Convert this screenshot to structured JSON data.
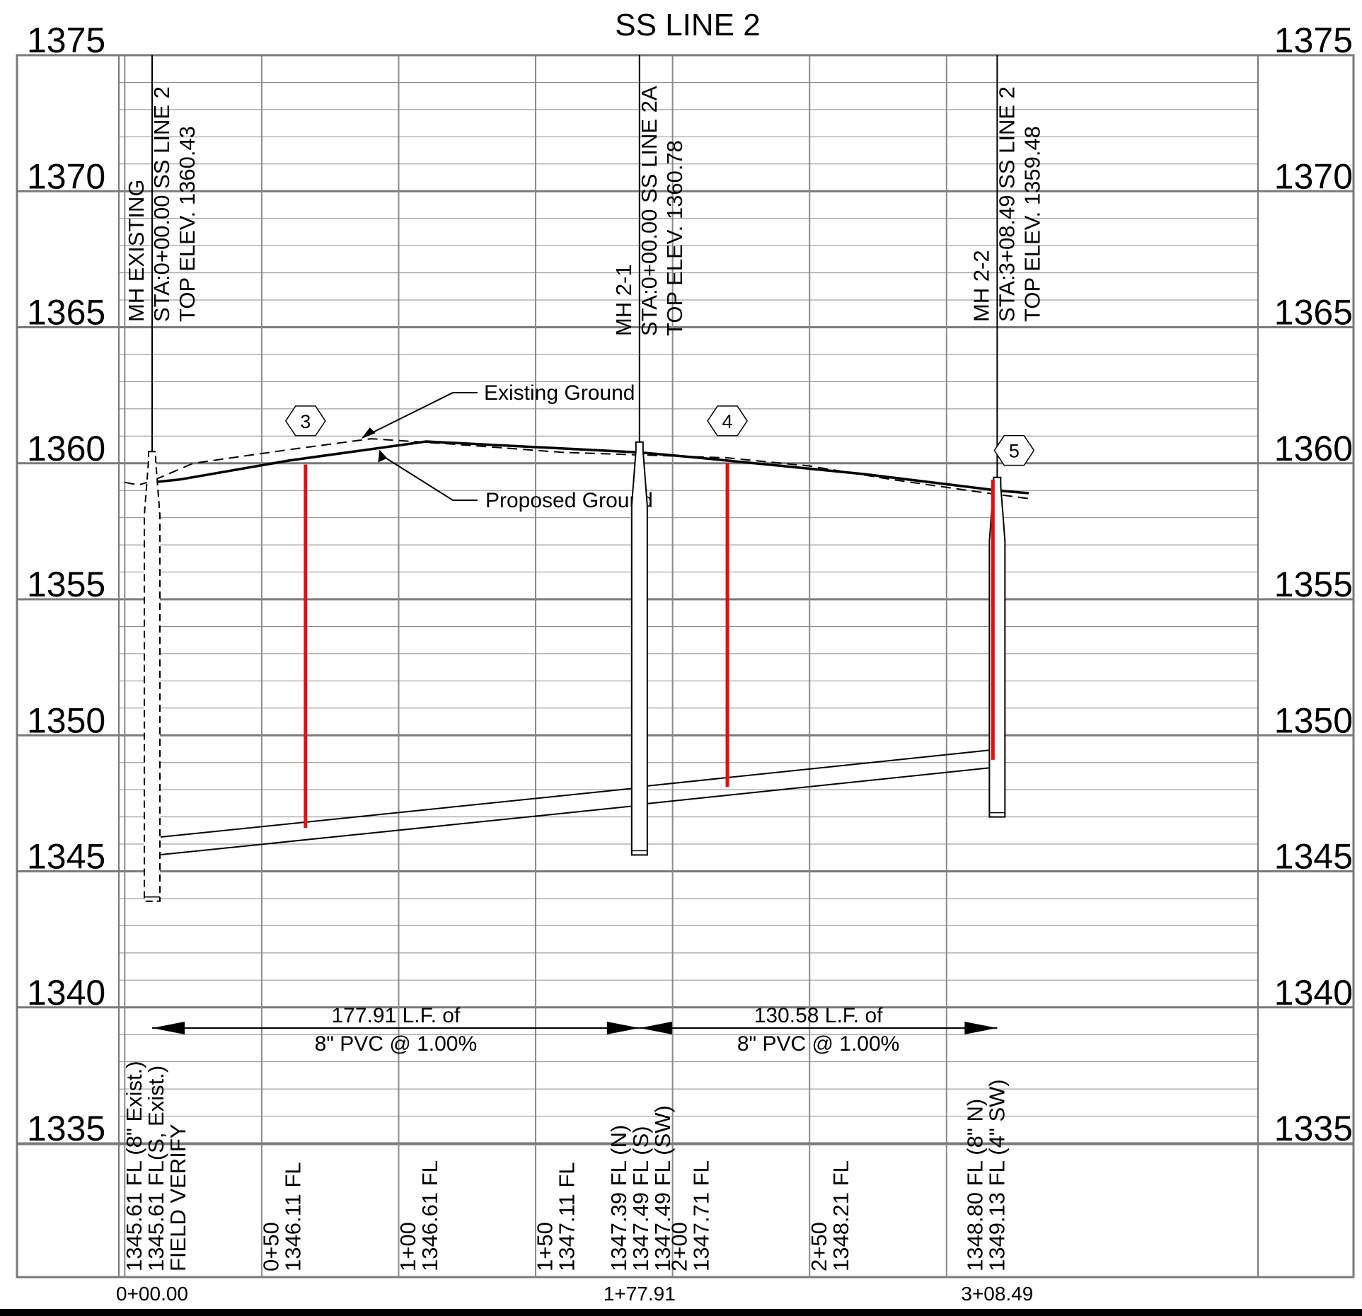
{
  "title": "SS LINE 2",
  "elevation_labels": [
    "1375",
    "1370",
    "1365",
    "1360",
    "1355",
    "1350",
    "1345",
    "1340",
    "1335"
  ],
  "manholes": [
    {
      "name": "MH EXISTING",
      "station_line": "STA:0+00.00 SS LINE 2",
      "top_elev": "TOP ELEV. 1360.43",
      "station": 0.0,
      "top": 1360.43,
      "bottom": 1343.9
    },
    {
      "name": "MH  2-1",
      "station_line": "STA:0+00.00 SS LINE 2A",
      "top_elev": "TOP ELEV. 1360.78",
      "station": 177.91,
      "top": 1360.78,
      "bottom": 1345.6
    },
    {
      "name": "MH 2-2",
      "station_line": "STA:3+08.49 SS LINE 2",
      "top_elev": "TOP ELEV. 1359.48",
      "station": 308.49,
      "top": 1359.48,
      "bottom": 1347.0
    }
  ],
  "ground": {
    "existing_label": "Existing Ground",
    "proposed_label": "Proposed Ground",
    "existing_profile": [
      [
        -10,
        1359.3
      ],
      [
        -5,
        1359.2
      ],
      [
        0,
        1359.35
      ],
      [
        15,
        1360.0
      ],
      [
        50,
        1360.5
      ],
      [
        80,
        1360.9
      ],
      [
        110,
        1360.7
      ],
      [
        150,
        1360.4
      ],
      [
        180,
        1360.3
      ],
      [
        210,
        1360.2
      ],
      [
        240,
        1359.9
      ],
      [
        270,
        1359.4
      ],
      [
        305,
        1358.9
      ],
      [
        320,
        1358.7
      ]
    ],
    "proposed_profile": [
      [
        0,
        1359.3
      ],
      [
        10,
        1359.4
      ],
      [
        50,
        1360.1
      ],
      [
        100,
        1360.8
      ],
      [
        177.91,
        1360.4
      ],
      [
        200,
        1360.2
      ],
      [
        260,
        1359.6
      ],
      [
        308.49,
        1359.0
      ],
      [
        320,
        1358.9
      ]
    ]
  },
  "pipes": [
    {
      "length_label": "177.91 L.F. of",
      "spec_label": "8\" PVC @ 1.00%",
      "from": 0.0,
      "to": 177.91,
      "invert_start": 1345.61,
      "invert_end": 1347.39
    },
    {
      "length_label": "130.58 L.F. of",
      "spec_label": "8\" PVC @ 1.00%",
      "from": 177.91,
      "to": 308.49,
      "invert_start": 1347.49,
      "invert_end": 1348.8
    }
  ],
  "callouts": [
    {
      "number": "3",
      "station": 56,
      "ground": 1359.95,
      "bottom": 1346.6
    },
    {
      "number": "4",
      "station": 210,
      "ground": 1360.0,
      "bottom": 1348.1
    },
    {
      "number": "5",
      "station": 309,
      "ground": 1359.4,
      "bottom": 1349.1
    }
  ],
  "vertical_labels": [
    {
      "text": "1345.61 FL (8\" Exist.)",
      "station": -7
    },
    {
      "text": "1345.61 FL(S, Exist.)",
      "station": 1
    },
    {
      "text": "FIELD VERIFY",
      "station": 9
    },
    {
      "text": "0+50",
      "station": 43
    },
    {
      "text": "1346.11 FL",
      "station": 51
    },
    {
      "text": "1+00",
      "station": 93
    },
    {
      "text": "1346.61 FL",
      "station": 101
    },
    {
      "text": "1+50",
      "station": 143
    },
    {
      "text": "1347.11 FL",
      "station": 151
    },
    {
      "text": "1347.39 FL (N)",
      "station": 170
    },
    {
      "text": "1347.49 FL (S)",
      "station": 178
    },
    {
      "text": "1347.49 FL (SW)",
      "station": 186
    },
    {
      "text": "2+00",
      "station": 192
    },
    {
      "text": "1347.71 FL",
      "station": 200
    },
    {
      "text": "2+50",
      "station": 243
    },
    {
      "text": "1348.21 FL",
      "station": 251
    },
    {
      "text": "1348.80 FL (8\" N)",
      "station": 300
    },
    {
      "text": "1349.13 FL (4\" SW)",
      "station": 308
    }
  ],
  "bottom_stations": [
    {
      "text": "0+00.00",
      "station": 0
    },
    {
      "text": "1+77.91",
      "station": 177.91
    },
    {
      "text": "3+08.49",
      "station": 308.49
    }
  ]
}
